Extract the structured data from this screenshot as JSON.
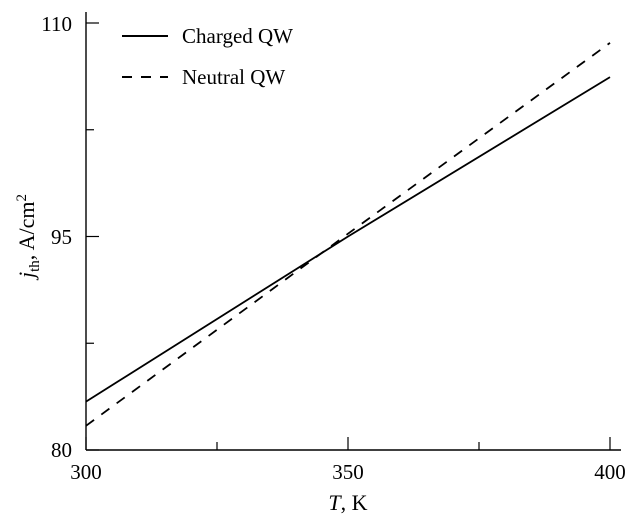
{
  "chart_data": {
    "type": "line",
    "x_axis": {
      "symbol": "T",
      "unit": ", K",
      "range": [
        300,
        400
      ],
      "major_ticks": [
        300,
        350,
        400
      ],
      "minor_ticks": [
        325,
        375
      ]
    },
    "y_axis": {
      "symbol": "j",
      "subscript": "th",
      "unit": ", A/cm",
      "unit_superscript": "2",
      "range": [
        80,
        110
      ],
      "major_ticks": [
        80,
        95,
        110
      ],
      "minor_ticks": [
        87.5,
        102.5
      ]
    },
    "tick_labels": {
      "x": [
        "300",
        "350",
        "400"
      ],
      "y": [
        "80",
        "95",
        "110"
      ]
    },
    "series": [
      {
        "name": "Charged QW",
        "style": "solid",
        "color": "#000000",
        "x": [
          300,
          350,
          400
        ],
        "y": [
          83.4,
          95.0,
          106.2
        ]
      },
      {
        "name": "Neutral QW",
        "style": "dashed",
        "color": "#000000",
        "x": [
          300,
          350,
          400
        ],
        "y": [
          81.7,
          95.2,
          108.6
        ]
      }
    ],
    "legend_position": "top-left",
    "grid": false
  }
}
